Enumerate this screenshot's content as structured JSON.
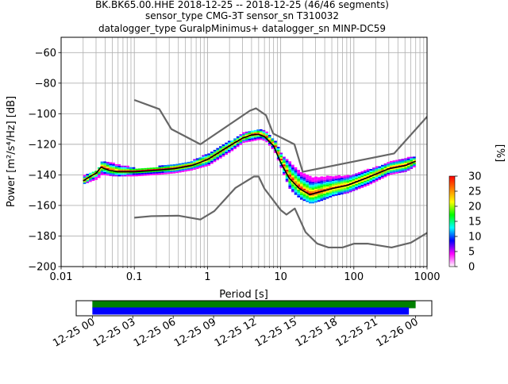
{
  "chart_data": [
    {
      "type": "heatmap",
      "title_lines": [
        "BK.BK65.00.HHE   2018-12-25 -- 2018-12-25  (46/46 segments)",
        "sensor_type CMG-3T sensor_sn T310032",
        "datalogger_type GuralpMinimus+ datalogger_sn MINP-DC59"
      ],
      "xlabel": "Period [s]",
      "ylabel": "Power [m²/s⁴/Hz] [dB]",
      "x_scale": "log",
      "xlim": [
        0.01,
        1000
      ],
      "ylim": [
        -200,
        -50
      ],
      "x_ticks": [
        0.01,
        0.1,
        1,
        10,
        100,
        1000
      ],
      "x_tick_labels": [
        "0.01",
        "0.1",
        "1",
        "10",
        "100",
        "1000"
      ],
      "y_ticks": [
        -200,
        -180,
        -160,
        -140,
        -120,
        -100,
        -80,
        -60
      ],
      "y_tick_labels": [
        "−200",
        "−180",
        "−160",
        "−140",
        "−120",
        "−100",
        "−80",
        "−60"
      ],
      "grid": true,
      "colorbar": {
        "label": "[%]",
        "min": 0,
        "max": 30,
        "ticks": [
          0,
          5,
          10,
          15,
          20,
          25,
          30
        ],
        "tick_labels": [
          "0",
          "5",
          "10",
          "15",
          "20",
          "25",
          "30"
        ],
        "colors": [
          "#ffffff",
          "#ff00ff",
          "#0000ff",
          "#00ffff",
          "#00ff00",
          "#ffff00",
          "#ff8000",
          "#ff0000"
        ]
      },
      "noise_models": [
        {
          "name": "NHNM",
          "color": "#666666",
          "points": [
            [
              0.1,
              -91
            ],
            [
              0.22,
              -97
            ],
            [
              0.32,
              -110
            ],
            [
              0.8,
              -120
            ],
            [
              3.8,
              -98
            ],
            [
              4.6,
              -96.5
            ],
            [
              6.3,
              -101
            ],
            [
              7.9,
              -113
            ],
            [
              15.4,
              -120
            ],
            [
              20,
              -138
            ],
            [
              354.8,
              -126
            ],
            [
              10000,
              -48.5
            ]
          ]
        },
        {
          "name": "NLNM",
          "color": "#666666",
          "points": [
            [
              0.1,
              -168
            ],
            [
              0.17,
              -167
            ],
            [
              0.4,
              -166.7
            ],
            [
              0.8,
              -169.2
            ],
            [
              1.24,
              -163.7
            ],
            [
              2.4,
              -148.6
            ],
            [
              4.3,
              -141.1
            ],
            [
              5,
              -141.1
            ],
            [
              6,
              -149
            ],
            [
              10,
              -163
            ],
            [
              12,
              -166
            ],
            [
              15.6,
              -162
            ],
            [
              21.9,
              -177.5
            ],
            [
              31.6,
              -185
            ],
            [
              45,
              -187.5
            ],
            [
              70,
              -187.5
            ],
            [
              101,
              -185
            ],
            [
              154,
              -185
            ],
            [
              328,
              -187.5
            ],
            [
              600,
              -184.4
            ],
            [
              1000,
              -178
            ]
          ]
        },
        {
          "name": "mode",
          "color": "#000000",
          "points": [
            [
              0.02,
              -144
            ],
            [
              0.025,
              -141
            ],
            [
              0.03,
              -139
            ],
            [
              0.035,
              -135
            ],
            [
              0.045,
              -137
            ],
            [
              0.06,
              -138
            ],
            [
              0.1,
              -138
            ],
            [
              0.2,
              -137
            ],
            [
              0.35,
              -136
            ],
            [
              0.6,
              -134
            ],
            [
              1,
              -130
            ],
            [
              2,
              -121
            ],
            [
              3,
              -116
            ],
            [
              4,
              -114
            ],
            [
              5,
              -113.5
            ],
            [
              6,
              -115
            ],
            [
              8,
              -121
            ],
            [
              10,
              -132
            ],
            [
              13,
              -142
            ],
            [
              18,
              -149
            ],
            [
              25,
              -153
            ],
            [
              35,
              -151
            ],
            [
              50,
              -149
            ],
            [
              80,
              -147
            ],
            [
              150,
              -142
            ],
            [
              300,
              -136
            ],
            [
              500,
              -134
            ],
            [
              700,
              -131
            ]
          ]
        }
      ],
      "psd_spread": {
        "x": [
          0.02,
          0.03,
          0.035,
          0.05,
          0.1,
          0.2,
          0.35,
          0.6,
          1,
          2,
          3,
          4,
          5,
          6,
          8,
          10,
          13,
          18,
          25,
          35,
          50,
          80,
          150,
          300,
          500,
          700
        ],
        "upper": [
          -140,
          -137,
          -131,
          -133,
          -136,
          -135,
          -133,
          -131,
          -126,
          -118,
          -113,
          -111,
          -110.5,
          -112,
          -118,
          -127,
          -132,
          -138,
          -142,
          -142,
          -141,
          -141,
          -137,
          -132,
          -129,
          -128
        ],
        "lower": [
          -146,
          -143,
          -140,
          -141,
          -141,
          -140,
          -139,
          -137,
          -134,
          -125,
          -119,
          -118,
          -117,
          -118,
          -125,
          -137,
          -150,
          -156,
          -159,
          -157,
          -154,
          -152,
          -147,
          -140,
          -138,
          -134
        ]
      }
    },
    {
      "type": "timeline",
      "x_tick_labels": [
        "12-25 00",
        "12-25 03",
        "12-25 06",
        "12-25 09",
        "12-25 12",
        "12-25 15",
        "12-25 18",
        "12-25 21",
        "12-26 00"
      ],
      "x_ticks_hours": [
        0,
        3,
        6,
        9,
        12,
        15,
        18,
        21,
        24
      ],
      "xlim_hours": [
        -1.2,
        25.2
      ],
      "bars": [
        {
          "name": "data",
          "color": "#008000",
          "start_hours": 0,
          "end_hours": 24
        },
        {
          "name": "used",
          "color": "#0000ff",
          "start_hours": 0,
          "end_hours": 23.5
        }
      ]
    }
  ]
}
